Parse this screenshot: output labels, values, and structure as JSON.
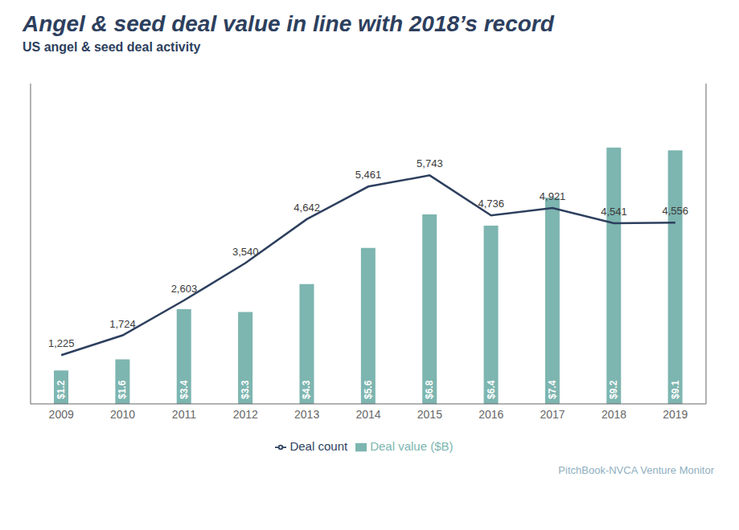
{
  "chart_data": {
    "type": "bar",
    "title": "Angel & seed deal value in line with 2018’s record",
    "subtitle": "US angel & seed deal activity",
    "annotations": [
      "PitchBook-NVCA Venture Monitor"
    ],
    "categories": [
      "2009",
      "2010",
      "2011",
      "2012",
      "2013",
      "2014",
      "2015",
      "2016",
      "2017",
      "2018",
      "2019"
    ],
    "series": [
      {
        "name": "Deal value ($B)",
        "type": "bar",
        "color": "#7db5b0",
        "values": [
          1.2,
          1.6,
          3.4,
          3.3,
          4.3,
          5.6,
          6.8,
          6.4,
          7.4,
          9.2,
          9.1
        ],
        "value_labels": [
          "$1.2",
          "$1.6",
          "$3.4",
          "$3.3",
          "$4.3",
          "$5.6",
          "$6.8",
          "$6.4",
          "$7.4",
          "$9.2",
          "$9.1"
        ]
      },
      {
        "name": "Deal count",
        "type": "line",
        "axis": "y2",
        "color": "#2d3f5e",
        "values": [
          1225,
          1724,
          2603,
          3540,
          4642,
          5461,
          5743,
          4736,
          4921,
          4541,
          4556
        ],
        "value_labels": [
          "1,225",
          "1,724",
          "2,603",
          "3,540",
          "4,642",
          "5,461",
          "5,743",
          "4,736",
          "4,921",
          "4,541",
          "4,556"
        ]
      }
    ],
    "ylim": [
      0,
      11.5
    ],
    "y2lim": [
      0,
      8050
    ],
    "tick_labels": "x",
    "data_labels": true,
    "grid": false,
    "legend": "bottom"
  }
}
